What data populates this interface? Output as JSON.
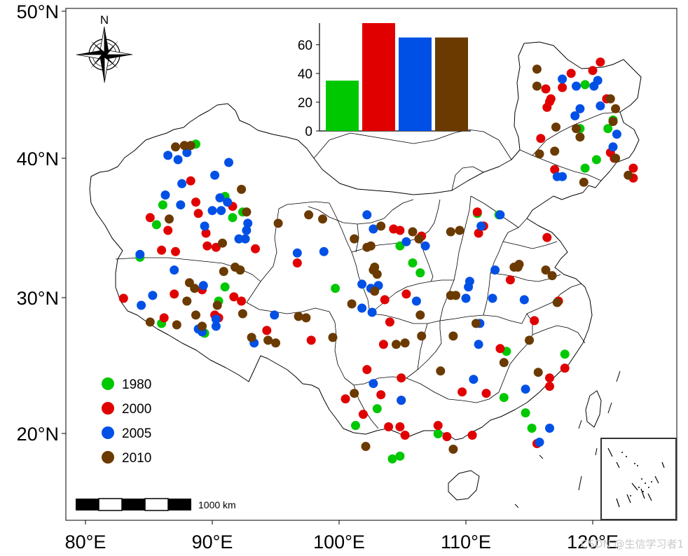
{
  "map": {
    "axes": {
      "x_ticks": [
        "80°E",
        "90°E",
        "100°E",
        "110°E",
        "120°E"
      ],
      "y_ticks": [
        "50°N",
        "40°N",
        "30°N",
        "20°N"
      ]
    },
    "north_arrow": {
      "label": "N",
      "icon": "compass-rose-icon"
    },
    "scale_bar": {
      "label": "1000 km"
    },
    "inset": {
      "icon": "south-china-sea-islands-inset"
    },
    "legend": [
      {
        "label": "1980",
        "color": "#00c800"
      },
      {
        "label": "2000",
        "color": "#e00000"
      },
      {
        "label": "2005",
        "color": "#0050e6"
      },
      {
        "label": "2010",
        "color": "#6b3a00"
      }
    ],
    "watermark": "CSDN @生信学习者1"
  },
  "chart_data": {
    "type": "bar",
    "categories": [
      "1980",
      "2000",
      "2005",
      "2010"
    ],
    "values": [
      35,
      75,
      65,
      65
    ],
    "colors": [
      "#00c800",
      "#e00000",
      "#0050e6",
      "#6b3a00"
    ],
    "y_ticks": [
      "0",
      "20",
      "40",
      "60"
    ],
    "ylim": [
      0,
      75
    ]
  },
  "points": {
    "1980": [
      [
        88.7,
        41.1
      ],
      [
        91.0,
        37.4
      ],
      [
        86.1,
        36.8
      ],
      [
        85.6,
        35.4
      ],
      [
        91.6,
        35.9
      ],
      [
        92.4,
        36.3
      ],
      [
        84.3,
        33.1
      ],
      [
        91.0,
        31.0
      ],
      [
        90.5,
        30.0
      ],
      [
        86.0,
        28.4
      ],
      [
        89.4,
        27.7
      ],
      [
        92.2,
        32.2
      ],
      [
        99.7,
        30.9
      ],
      [
        104.8,
        33.9
      ],
      [
        106.4,
        32.0
      ],
      [
        105.8,
        32.7
      ],
      [
        110.9,
        36.2
      ],
      [
        112.6,
        36.1
      ],
      [
        119.4,
        45.3
      ],
      [
        119.0,
        42.2
      ],
      [
        119.4,
        39.4
      ],
      [
        120.3,
        40.0
      ],
      [
        121.2,
        42.2
      ],
      [
        121.6,
        42.8
      ],
      [
        117.8,
        26.2
      ],
      [
        113.2,
        26.4
      ],
      [
        113.0,
        23.1
      ],
      [
        114.7,
        22.0
      ],
      [
        115.2,
        20.9
      ],
      [
        103.0,
        22.3
      ],
      [
        101.3,
        21.1
      ],
      [
        104.2,
        18.7
      ],
      [
        104.8,
        18.9
      ],
      [
        107.8,
        20.5
      ]
    ],
    "2000": [
      [
        88.3,
        38.5
      ],
      [
        88.7,
        37.0
      ],
      [
        88.9,
        36.2
      ],
      [
        85.1,
        35.9
      ],
      [
        86.5,
        35.0
      ],
      [
        89.5,
        34.8
      ],
      [
        86.0,
        33.6
      ],
      [
        87.1,
        33.5
      ],
      [
        89.6,
        33.9
      ],
      [
        90.3,
        33.8
      ],
      [
        91.6,
        36.7
      ],
      [
        93.4,
        33.7
      ],
      [
        90.2,
        29.0
      ],
      [
        90.5,
        28.8
      ],
      [
        91.7,
        30.3
      ],
      [
        92.3,
        30.0
      ],
      [
        83.0,
        30.2
      ],
      [
        86.2,
        28.8
      ],
      [
        87.0,
        30.5
      ],
      [
        89.2,
        30.8
      ],
      [
        94.3,
        27.9
      ],
      [
        97.8,
        27.2
      ],
      [
        96.7,
        32.7
      ],
      [
        102.2,
        25.1
      ],
      [
        100.5,
        23.0
      ],
      [
        101.9,
        21.9
      ],
      [
        103.3,
        23.3
      ],
      [
        103.9,
        21.0
      ],
      [
        104.8,
        21.0
      ],
      [
        105.2,
        20.4
      ],
      [
        104.9,
        22.9
      ],
      [
        104.0,
        28.5
      ],
      [
        104.9,
        24.5
      ],
      [
        105.3,
        30.5
      ],
      [
        103.5,
        26.9
      ],
      [
        103.6,
        30.1
      ],
      [
        104.3,
        35.1
      ],
      [
        104.8,
        35.0
      ],
      [
        106.3,
        34.4
      ],
      [
        106.5,
        34.6
      ],
      [
        108.5,
        20.3
      ],
      [
        107.8,
        21.1
      ],
      [
        109.7,
        23.5
      ],
      [
        110.5,
        20.4
      ],
      [
        111.6,
        23.4
      ],
      [
        112.7,
        26.6
      ],
      [
        113.5,
        31.5
      ],
      [
        115.4,
        28.6
      ],
      [
        116.6,
        23.9
      ],
      [
        117.8,
        25.2
      ],
      [
        115.6,
        19.8
      ],
      [
        116.6,
        24.5
      ],
      [
        117.3,
        30.0
      ],
      [
        111.0,
        34.8
      ],
      [
        111.4,
        35.3
      ],
      [
        110.9,
        36.3
      ],
      [
        116.4,
        34.5
      ],
      [
        115.9,
        41.5
      ],
      [
        116.4,
        43.7
      ],
      [
        116.6,
        44.1
      ],
      [
        116.7,
        44.3
      ],
      [
        116.3,
        45.0
      ],
      [
        117.6,
        45.1
      ],
      [
        118.3,
        46.1
      ],
      [
        120.0,
        46.3
      ],
      [
        120.6,
        46.9
      ],
      [
        121.1,
        44.3
      ],
      [
        121.4,
        40.5
      ],
      [
        121.7,
        40.1
      ],
      [
        123.2,
        39.4
      ],
      [
        123.2,
        38.7
      ],
      [
        117.0,
        39.3
      ]
    ],
    "2005": [
      [
        86.5,
        40.3
      ],
      [
        87.3,
        40.0
      ],
      [
        88.0,
        40.5
      ],
      [
        87.6,
        38.3
      ],
      [
        86.3,
        37.5
      ],
      [
        87.5,
        36.8
      ],
      [
        89.4,
        35.3
      ],
      [
        90.2,
        38.9
      ],
      [
        91.3,
        39.8
      ],
      [
        90.6,
        37.3
      ],
      [
        91.2,
        37.0
      ],
      [
        90.7,
        36.4
      ],
      [
        90.0,
        36.4
      ],
      [
        92.8,
        35.5
      ],
      [
        92.7,
        35.0
      ],
      [
        92.6,
        34.4
      ],
      [
        92.1,
        34.4
      ],
      [
        84.3,
        33.3
      ],
      [
        87.0,
        32.2
      ],
      [
        89.3,
        31.1
      ],
      [
        84.4,
        29.7
      ],
      [
        85.3,
        30.4
      ],
      [
        88.9,
        28.0
      ],
      [
        89.2,
        27.8
      ],
      [
        90.3,
        28.2
      ],
      [
        90.3,
        28.7
      ],
      [
        94.9,
        29.0
      ],
      [
        93.3,
        27.0
      ],
      [
        96.7,
        33.4
      ],
      [
        98.8,
        33.5
      ],
      [
        101.8,
        31.2
      ],
      [
        103.1,
        31.1
      ],
      [
        102.5,
        30.9
      ],
      [
        101.8,
        29.5
      ],
      [
        102.6,
        29.2
      ],
      [
        106.8,
        33.9
      ],
      [
        106.1,
        30.0
      ],
      [
        102.7,
        35.1
      ],
      [
        105.3,
        34.2
      ],
      [
        102.2,
        36.1
      ],
      [
        102.7,
        24.1
      ],
      [
        104.9,
        22.9
      ],
      [
        110.0,
        30.2
      ],
      [
        110.3,
        31.4
      ],
      [
        110.2,
        31.0
      ],
      [
        111.1,
        28.4
      ],
      [
        111.0,
        26.9
      ],
      [
        112.3,
        32.2
      ],
      [
        112.1,
        30.2
      ],
      [
        114.6,
        30.1
      ],
      [
        114.7,
        23.7
      ],
      [
        115.8,
        19.9
      ],
      [
        116.6,
        20.9
      ],
      [
        110.6,
        24.4
      ],
      [
        111.2,
        35.3
      ],
      [
        112.7,
        36.1
      ],
      [
        117.2,
        38.8
      ],
      [
        117.6,
        45.7
      ],
      [
        118.7,
        45.2
      ],
      [
        119.0,
        43.6
      ],
      [
        120.1,
        45.2
      ],
      [
        120.4,
        45.6
      ],
      [
        120.6,
        43.8
      ],
      [
        121.9,
        41.8
      ],
      [
        121.6,
        40.9
      ],
      [
        118.6,
        43.1
      ],
      [
        117.6,
        38.8
      ]
    ],
    "2010": [
      [
        87.1,
        40.9
      ],
      [
        87.8,
        41.0
      ],
      [
        88.3,
        41.0
      ],
      [
        92.3,
        37.9
      ],
      [
        86.6,
        35.8
      ],
      [
        90.8,
        34.1
      ],
      [
        92.7,
        36.3
      ],
      [
        90.9,
        32.1
      ],
      [
        91.8,
        32.4
      ],
      [
        92.2,
        32.2
      ],
      [
        88.2,
        31.3
      ],
      [
        88.6,
        30.9
      ],
      [
        90.4,
        29.7
      ],
      [
        88.0,
        30.0
      ],
      [
        88.7,
        29.0
      ],
      [
        85.1,
        28.5
      ],
      [
        87.2,
        28.3
      ],
      [
        89.2,
        28.2
      ],
      [
        92.4,
        29.1
      ],
      [
        93.1,
        27.4
      ],
      [
        94.4,
        27.2
      ],
      [
        95.0,
        27.0
      ],
      [
        95.2,
        35.5
      ],
      [
        96.8,
        28.9
      ],
      [
        97.4,
        28.8
      ],
      [
        97.6,
        36.1
      ],
      [
        98.7,
        35.8
      ],
      [
        99.5,
        27.4
      ],
      [
        101.2,
        34.4
      ],
      [
        102.2,
        33.8
      ],
      [
        102.5,
        33.9
      ],
      [
        102.7,
        32.2
      ],
      [
        103.0,
        31.9
      ],
      [
        102.8,
        30.7
      ],
      [
        102.8,
        32.4
      ],
      [
        101.0,
        29.8
      ],
      [
        104.5,
        26.9
      ],
      [
        106.4,
        29.0
      ],
      [
        106.5,
        27.5
      ],
      [
        108.0,
        25.0
      ],
      [
        109.0,
        27.5
      ],
      [
        108.8,
        30.4
      ],
      [
        109.2,
        30.4
      ],
      [
        108.8,
        34.9
      ],
      [
        109.5,
        35.0
      ],
      [
        109.0,
        19.4
      ],
      [
        101.2,
        23.4
      ],
      [
        102.1,
        19.6
      ],
      [
        105.2,
        27.0
      ],
      [
        103.3,
        35.3
      ],
      [
        105.8,
        34.9
      ],
      [
        106.3,
        34.4
      ],
      [
        110.8,
        28.4
      ],
      [
        113.0,
        25.6
      ],
      [
        114.1,
        32.4
      ],
      [
        113.8,
        32.4
      ],
      [
        114.2,
        32.6
      ],
      [
        115.0,
        27.2
      ],
      [
        115.7,
        24.9
      ],
      [
        116.3,
        32.2
      ],
      [
        116.8,
        31.8
      ],
      [
        117.2,
        29.9
      ],
      [
        115.6,
        45.2
      ],
      [
        115.6,
        46.4
      ],
      [
        115.8,
        40.4
      ],
      [
        117.0,
        40.6
      ],
      [
        117.1,
        42.3
      ],
      [
        118.7,
        42.2
      ],
      [
        119.0,
        41.6
      ],
      [
        121.6,
        42.7
      ],
      [
        121.4,
        44.3
      ],
      [
        121.8,
        43.6
      ],
      [
        121.8,
        40.1
      ],
      [
        122.8,
        38.9
      ],
      [
        119.3,
        38.4
      ]
    ]
  }
}
